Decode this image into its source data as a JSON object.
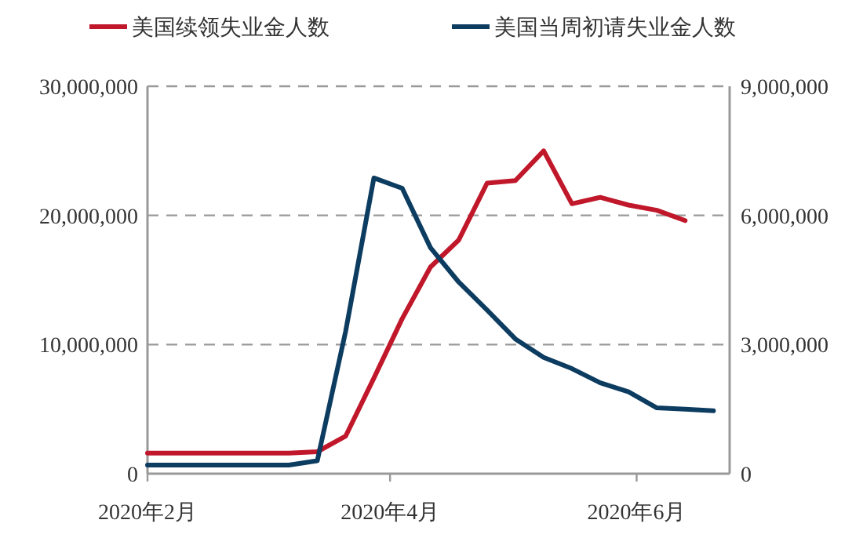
{
  "chart_data": {
    "type": "line",
    "x": [
      "2020-02-01",
      "2020-02-08",
      "2020-02-15",
      "2020-02-22",
      "2020-02-29",
      "2020-03-07",
      "2020-03-14",
      "2020-03-21",
      "2020-03-28",
      "2020-04-04",
      "2020-04-11",
      "2020-04-18",
      "2020-04-25",
      "2020-05-02",
      "2020-05-09",
      "2020-05-16",
      "2020-05-23",
      "2020-05-30",
      "2020-06-06",
      "2020-06-13",
      "2020-06-20"
    ],
    "series": [
      {
        "name": "美国续领失业金人数",
        "color": "#c0182a",
        "values": [
          1600000,
          1600000,
          1600000,
          1600000,
          1600000,
          1600000,
          1700000,
          2900000,
          7400000,
          12000000,
          16000000,
          18100000,
          22500000,
          22700000,
          25000000,
          20900000,
          21400000,
          20800000,
          20400000,
          19600000,
          null
        ]
      },
      {
        "name": "美国当周初请失业金人数",
        "color": "#0d3c61",
        "axis": "y2",
        "values": [
          200000,
          200000,
          200000,
          200000,
          200000,
          200000,
          300000,
          3300000,
          6870000,
          6630000,
          5250000,
          4450000,
          3800000,
          3130000,
          2700000,
          2440000,
          2110000,
          1900000,
          1530000,
          1500000,
          1460000
        ]
      }
    ],
    "xlim": [
      "2020-02-01",
      "2020-06-24"
    ],
    "xticks": [
      {
        "value": "2020-02-01",
        "label": "2020年2月"
      },
      {
        "value": "2020-04-01",
        "label": "2020年4月"
      },
      {
        "value": "2020-06-01",
        "label": "2020年6月"
      }
    ],
    "ylim": [
      0,
      30000000
    ],
    "yticks": [
      {
        "value": 0,
        "label": "0"
      },
      {
        "value": 10000000,
        "label": "10,000,000"
      },
      {
        "value": 20000000,
        "label": "20,000,000"
      },
      {
        "value": 30000000,
        "label": "30,000,000"
      }
    ],
    "y2lim": [
      0,
      9000000
    ],
    "y2ticks": [
      {
        "value": 0,
        "label": "0"
      },
      {
        "value": 3000000,
        "label": "3,000,000"
      },
      {
        "value": 6000000,
        "label": "6,000,000"
      },
      {
        "value": 9000000,
        "label": "9,000,000"
      }
    ],
    "grid": "y",
    "legend": "top",
    "line_style": "solid",
    "marker": "none"
  }
}
